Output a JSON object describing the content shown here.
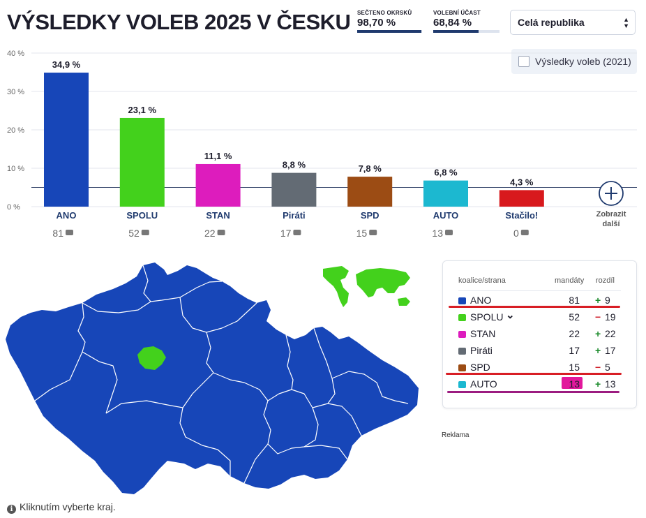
{
  "header": {
    "title": "VÝSLEDKY VOLEB 2025 V ČESKU"
  },
  "stats": [
    {
      "label": "SEČTENO OKRSKŮ",
      "value": "98,70 %",
      "progress": 0.987
    },
    {
      "label": "VOLEBNÍ ÚČAST",
      "value": "68,84 %",
      "progress": 0.6884
    }
  ],
  "region_select": {
    "value": "Celá republika"
  },
  "compare_toggle": {
    "label": "Výsledky voleb (2021)",
    "checked": false
  },
  "chart_data": {
    "type": "bar",
    "categories": [
      "ANO",
      "SPOLU",
      "STAN",
      "Piráti",
      "SPD",
      "AUTO",
      "Stačilo!"
    ],
    "values": [
      34.9,
      23.1,
      11.1,
      8.8,
      7.8,
      6.8,
      4.3
    ],
    "value_labels": [
      "34,9 %",
      "23,1 %",
      "11,1 %",
      "8,8 %",
      "7,8 %",
      "6,8 %",
      "4,3 %"
    ],
    "colors": [
      "#1746b8",
      "#43d11c",
      "#dd1cbd",
      "#636b74",
      "#9c4c14",
      "#1cb8d0",
      "#d8191d"
    ],
    "seats": [
      81,
      52,
      22,
      17,
      15,
      13,
      0
    ],
    "yticks": [
      "0 %",
      "10 %",
      "20 %",
      "30 %",
      "40 %"
    ],
    "ylim": [
      0,
      40
    ],
    "threshold": 5,
    "more_label": [
      "Zobrazit",
      "další"
    ]
  },
  "map": {
    "region_color": "#1746b8",
    "prague_color": "#43d11c",
    "world_color": "#43d11c"
  },
  "legend": {
    "headers": {
      "party": "koalice/strana",
      "seats": "mandáty",
      "diff": "rozdíl"
    },
    "rows": [
      {
        "name": "ANO",
        "color": "#1746b8",
        "seats": "81",
        "sign": "+",
        "diff": "9"
      },
      {
        "name": "SPOLU",
        "color": "#43d11c",
        "seats": "52",
        "sign": "−",
        "diff": "19",
        "expand": true
      },
      {
        "name": "STAN",
        "color": "#dd1cbd",
        "seats": "22",
        "sign": "+",
        "diff": "22"
      },
      {
        "name": "Piráti",
        "color": "#636b74",
        "seats": "17",
        "sign": "+",
        "diff": "17"
      },
      {
        "name": "SPD",
        "color": "#9c4c14",
        "seats": "15",
        "sign": "−",
        "diff": "5"
      },
      {
        "name": "AUTO",
        "color": "#1cb8d0",
        "seats": "13",
        "sign": "+",
        "diff": "13"
      }
    ]
  },
  "footer": {
    "ad_label": "Reklama",
    "hint": "Kliknutím vyberte kraj."
  }
}
